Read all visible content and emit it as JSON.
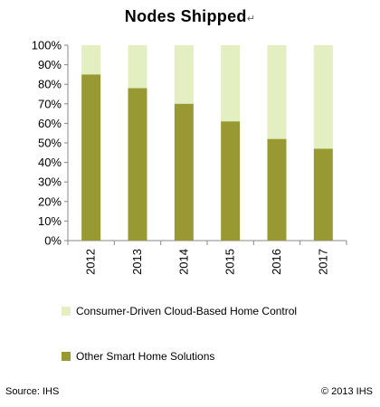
{
  "title": "Nodes Shipped",
  "title_mark": "↵",
  "footer": {
    "source": "Source: IHS",
    "copyright": "© 2013 IHS"
  },
  "colors": {
    "lower": "#999933",
    "upper": "#E3EEC1",
    "axis": "#888888"
  },
  "chart_data": {
    "type": "bar",
    "stacked": true,
    "percent_stacked": true,
    "categories": [
      "2012",
      "2013",
      "2014",
      "2015",
      "2016",
      "2017"
    ],
    "series": [
      {
        "name": "Other Smart Home Solutions",
        "values": [
          85,
          78,
          70,
          61,
          52,
          47
        ]
      },
      {
        "name": "Consumer-Driven Cloud-Based Home Control",
        "values": [
          15,
          22,
          30,
          39,
          48,
          53
        ]
      }
    ],
    "y_ticks": [
      "0%",
      "10%",
      "20%",
      "30%",
      "40%",
      "50%",
      "60%",
      "70%",
      "80%",
      "90%",
      "100%"
    ],
    "ylim": [
      0,
      100
    ],
    "title": "Nodes Shipped",
    "xlabel": "",
    "ylabel": "",
    "grid": false,
    "legend_position": "bottom"
  }
}
